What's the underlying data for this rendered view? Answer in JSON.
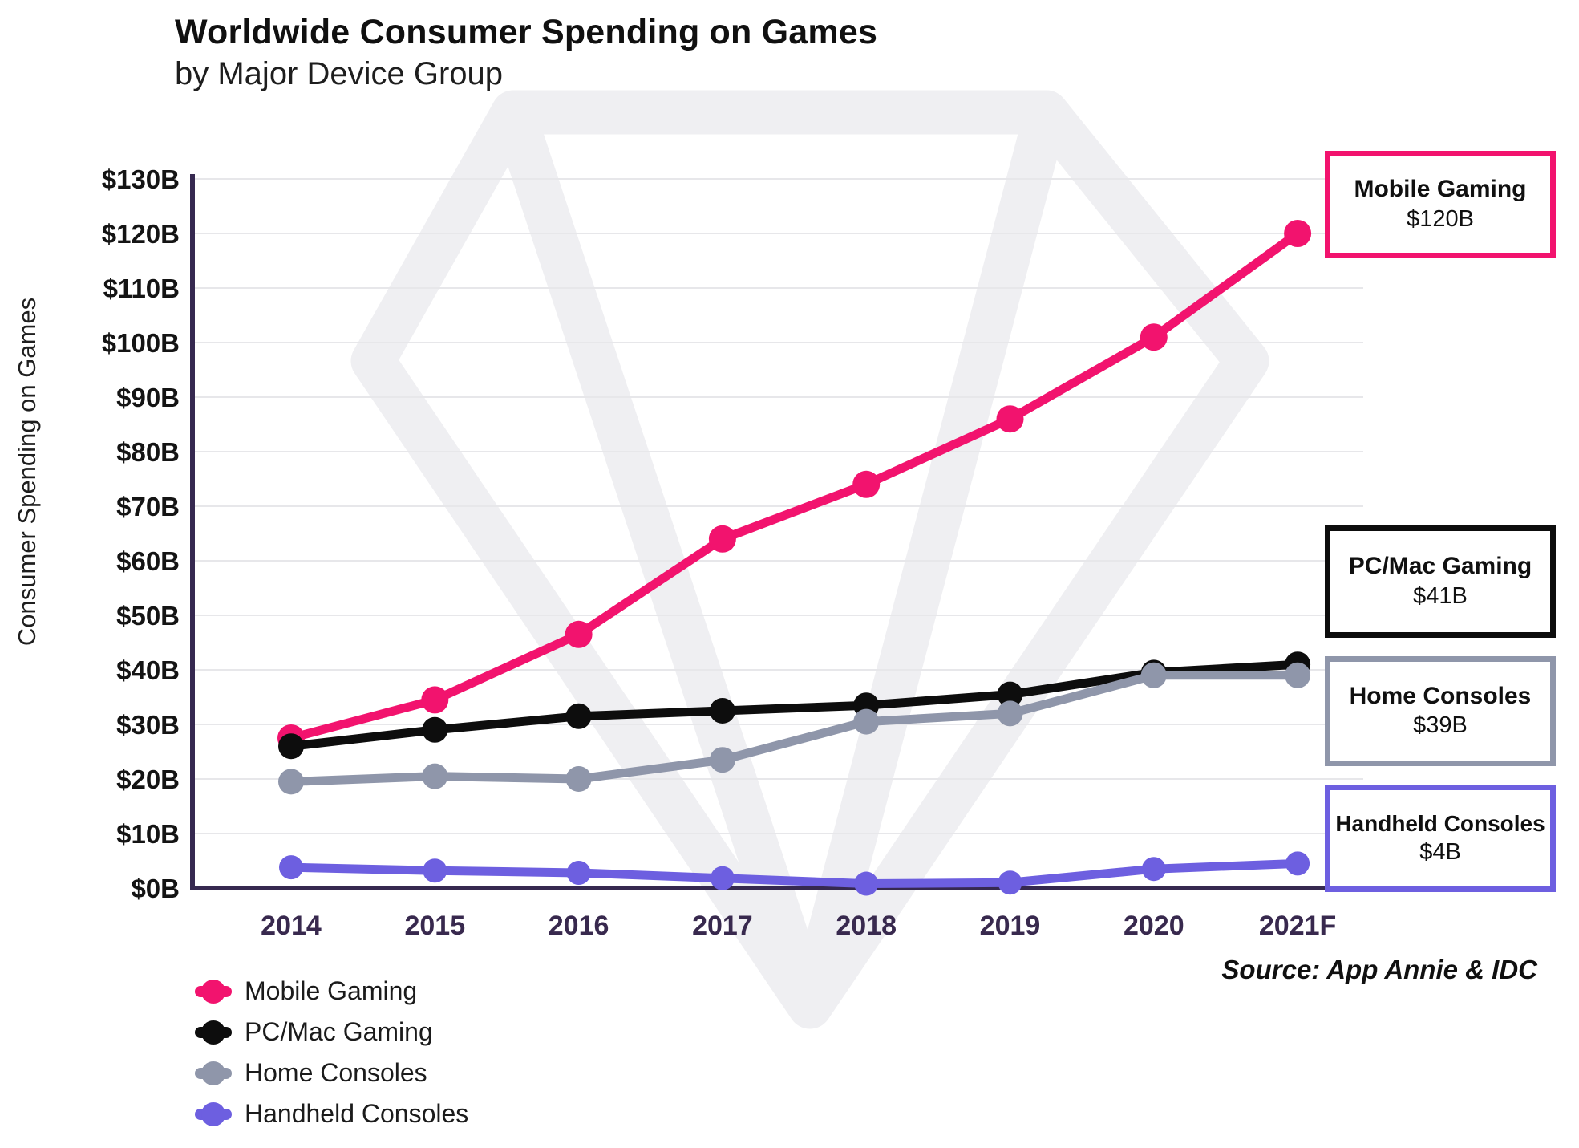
{
  "title": "Worldwide Consumer Spending on Games",
  "subtitle": "by Major Device Group",
  "y_axis_label": "Consumer Spending on Games",
  "source": "Source: App Annie & IDC",
  "colors": {
    "mobile": "#F2136E",
    "pc_mac": "#0D0D0D",
    "home_consoles": "#8F96AA",
    "handheld_consoles": "#6D5FE0",
    "axis": "#362950",
    "gridline": "#e7e7ea",
    "year_label": "#38294e",
    "watermark": "#efeff2"
  },
  "chart_data": {
    "type": "line",
    "title": "Worldwide Consumer Spending on Games by Major Device Group",
    "xlabel": "",
    "ylabel": "Consumer Spending on Games",
    "categories": [
      "2014",
      "2015",
      "2016",
      "2017",
      "2018",
      "2019",
      "2020",
      "2021F"
    ],
    "series": [
      {
        "name": "Mobile Gaming",
        "color": "#F2136E",
        "values": [
          27.5,
          34.5,
          46.5,
          64,
          74,
          86,
          101,
          120
        ]
      },
      {
        "name": "PC/Mac Gaming",
        "color": "#0D0D0D",
        "values": [
          26,
          29,
          31.5,
          32.5,
          33.5,
          35.5,
          39.5,
          41
        ]
      },
      {
        "name": "Home Consoles",
        "color": "#8F96AA",
        "values": [
          19.5,
          20.5,
          20,
          23.5,
          30.5,
          32,
          39,
          39
        ]
      },
      {
        "name": "Handheld Consoles",
        "color": "#6D5FE0",
        "values": [
          3.8,
          3.2,
          2.8,
          1.8,
          0.8,
          1,
          3.5,
          4.5
        ]
      }
    ],
    "ylim": [
      0,
      130
    ],
    "y_tick_step": 10,
    "y_tick_labels": [
      "$0B",
      "$10B",
      "$20B",
      "$30B",
      "$40B",
      "$50B",
      "$60B",
      "$70B",
      "$80B",
      "$90B",
      "$100B",
      "$110B",
      "$120B",
      "$130B"
    ],
    "grid": "horizontal",
    "legend_position": "bottom-left"
  },
  "callouts": [
    {
      "label": "Mobile Gaming",
      "value": "$120B",
      "color": "#F2136E"
    },
    {
      "label": "PC/Mac Gaming",
      "value": "$41B",
      "color": "#0D0D0D"
    },
    {
      "label": "Home Consoles",
      "value": "$39B",
      "color": "#8F96AA"
    },
    {
      "label": "Handheld Consoles",
      "value": "$4B",
      "color": "#6D5FE0"
    }
  ],
  "legend": [
    {
      "label": "Mobile Gaming",
      "color": "#F2136E"
    },
    {
      "label": "PC/Mac Gaming",
      "color": "#0D0D0D"
    },
    {
      "label": "Home Consoles",
      "color": "#8F96AA"
    },
    {
      "label": "Handheld Consoles",
      "color": "#6D5FE0"
    }
  ]
}
